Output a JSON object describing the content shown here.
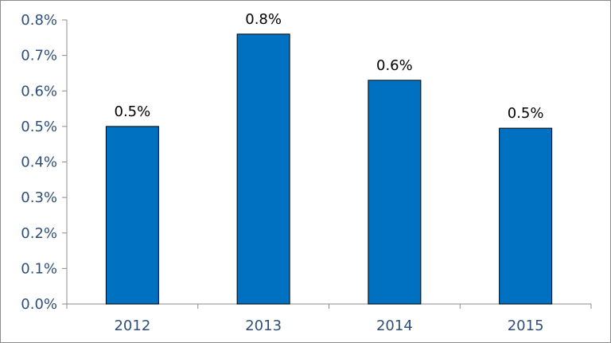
{
  "colors": {
    "bar_fill": "#0070c0",
    "bar_stroke": "#000000",
    "axis": "#8c8c8c",
    "tick_text": "#2f4f7a",
    "label_text": "#000000"
  },
  "chart_data": {
    "type": "bar",
    "title": "",
    "xlabel": "",
    "ylabel": "",
    "categories": [
      "2012",
      "2013",
      "2014",
      "2015"
    ],
    "values": [
      0.5,
      0.76,
      0.63,
      0.495
    ],
    "data_labels": [
      "0.5%",
      "0.8%",
      "0.6%",
      "0.5%"
    ],
    "ylim": [
      0,
      0.8
    ],
    "yticks": [
      0,
      0.1,
      0.2,
      0.3,
      0.4,
      0.5,
      0.6,
      0.7,
      0.8
    ],
    "ytick_labels": [
      "0.0%",
      "0.1%",
      "0.2%",
      "0.3%",
      "0.4%",
      "0.5%",
      "0.6%",
      "0.7%",
      "0.8%"
    ],
    "grid": false,
    "legend": "none"
  }
}
